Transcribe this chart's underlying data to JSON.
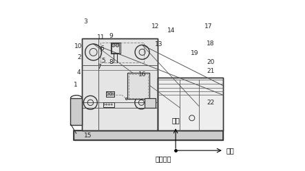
{
  "bg_color": "#ffffff",
  "line_color": "#555555",
  "dark_line": "#333333",
  "label_color": "#222222",
  "dashed_color": "#888888",
  "vertical_label": "垂向",
  "horizontal_label": "纵向",
  "lateral_label": "（横向）"
}
